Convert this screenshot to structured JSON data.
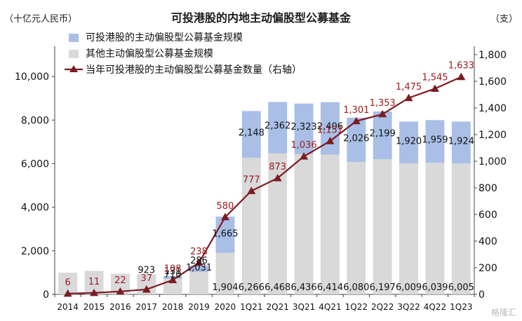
{
  "chart_data": {
    "type": "bar",
    "title": "可投港股的内地主动偏股型公募基金",
    "ylabel_left": "（十亿元人民币）",
    "ylabel_right": "（支）",
    "ylim_left": [
      0,
      11000
    ],
    "ylim_right": [
      0,
      1800
    ],
    "yticks_left": [
      "0",
      "2,000",
      "4,000",
      "6,000",
      "8,000",
      "10,000"
    ],
    "yticks_right": [
      "0",
      "200",
      "400",
      "600",
      "800",
      "1,000",
      "1,200",
      "1,400",
      "1,600",
      "1,800"
    ],
    "categories": [
      "2014",
      "2015",
      "2016",
      "2017",
      "2018",
      "2019",
      "2020",
      "1Q21",
      "2Q21",
      "3Q21",
      "4Q21",
      "1Q22",
      "2Q22",
      "3Q22",
      "4Q22",
      "1Q23"
    ],
    "series": [
      {
        "name": "其他主动偏股型公募基金规模",
        "type": "bar-stack-bottom",
        "color": "#d9d9d9",
        "values": [
          1000,
          1080,
          950,
          923,
          710,
          1031,
          1904,
          6266,
          6468,
          6436,
          6414,
          6080,
          6197,
          6009,
          6039,
          6005
        ],
        "labels": [
          "",
          "",
          "",
          "923",
          "710",
          "1,031",
          "1,904",
          "6,266",
          "6,468",
          "6,436",
          "6,414",
          "6,080",
          "6,197",
          "6,009",
          "6,039",
          "6,005"
        ]
      },
      {
        "name": "可投港股的主动偏股型公募基金规模",
        "type": "bar-stack-top",
        "color": "#a9bfe6",
        "values": [
          0,
          0,
          0,
          0,
          131,
          286,
          1665,
          2148,
          2362,
          2323,
          2406,
          2026,
          2199,
          1920,
          1959,
          1924
        ],
        "labels": [
          "",
          "",
          "",
          "",
          "131",
          "286",
          "1,665",
          "2,148",
          "2,362",
          "2,323",
          "2,406",
          "2,026",
          "2,199",
          "1,920",
          "1,959",
          "1,924"
        ]
      },
      {
        "name": "当年可投港股的主动偏股型公募基金数量（右轴）",
        "type": "line",
        "color": "#7b1c22",
        "axis": "right",
        "values": [
          6,
          11,
          22,
          37,
          108,
          238,
          580,
          777,
          873,
          1036,
          1151,
          1301,
          1353,
          1475,
          1545,
          1633
        ],
        "labels": [
          "6",
          "11",
          "22",
          "37",
          "108",
          "238",
          "580",
          "777",
          "873",
          "1,036",
          "1,151",
          "1,301",
          "1,353",
          "1,475",
          "1,545",
          "1,633"
        ]
      }
    ],
    "legend": "top-left",
    "grid": false
  },
  "watermark": "格隆汇"
}
